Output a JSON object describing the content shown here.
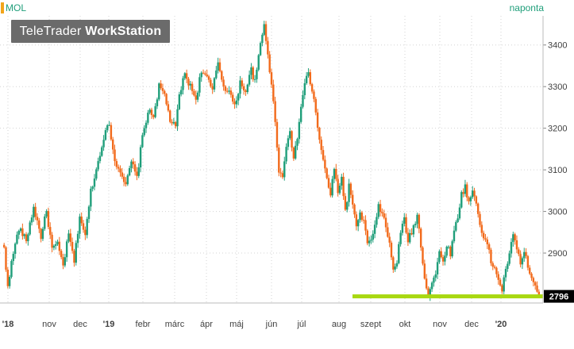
{
  "header": {
    "symbol": "MOL",
    "period": "naponta",
    "logo_regular": "TeleTrader",
    "logo_bold": "WorkStation"
  },
  "colors": {
    "up": "#1f9e7a",
    "down": "#f26a1b",
    "support": "#a8d810",
    "grid": "#d3d3d3",
    "axis_text": "#404040",
    "last_price_box": "#000000"
  },
  "chart_data": {
    "type": "candlestick",
    "x_ticks": [
      "'18",
      "nov",
      "dec",
      "'19",
      "febr",
      "márc",
      "ápr",
      "máj",
      "jún",
      "júl",
      "aug",
      "szept",
      "okt",
      "nov",
      "dec",
      "'20"
    ],
    "y_ticks": [
      2900,
      3000,
      3100,
      3200,
      3300,
      3400
    ],
    "ylim": [
      2780,
      3470
    ],
    "last_price": "2796",
    "support_level": 2796,
    "grid": true,
    "waypoints": [
      [
        0,
        2910
      ],
      [
        1,
        2860
      ],
      [
        2,
        2825
      ],
      [
        5,
        2900
      ],
      [
        8,
        2960
      ],
      [
        12,
        2930
      ],
      [
        16,
        3010
      ],
      [
        20,
        2940
      ],
      [
        23,
        3000
      ],
      [
        26,
        2910
      ],
      [
        29,
        2920
      ],
      [
        32,
        2870
      ],
      [
        35,
        2945
      ],
      [
        38,
        2880
      ],
      [
        41,
        2990
      ],
      [
        44,
        2940
      ],
      [
        47,
        3050
      ],
      [
        50,
        3100
      ],
      [
        54,
        3180
      ],
      [
        57,
        3210
      ],
      [
        60,
        3120
      ],
      [
        63,
        3100
      ],
      [
        66,
        3060
      ],
      [
        69,
        3120
      ],
      [
        72,
        3080
      ],
      [
        75,
        3180
      ],
      [
        78,
        3240
      ],
      [
        81,
        3230
      ],
      [
        84,
        3300
      ],
      [
        87,
        3280
      ],
      [
        90,
        3220
      ],
      [
        93,
        3200
      ],
      [
        95,
        3280
      ],
      [
        98,
        3330
      ],
      [
        101,
        3300
      ],
      [
        104,
        3270
      ],
      [
        107,
        3340
      ],
      [
        110,
        3320
      ],
      [
        113,
        3290
      ],
      [
        116,
        3360
      ],
      [
        119,
        3300
      ],
      [
        122,
        3290
      ],
      [
        125,
        3250
      ],
      [
        128,
        3310
      ],
      [
        131,
        3290
      ],
      [
        134,
        3340
      ],
      [
        136,
        3310
      ],
      [
        139,
        3400
      ],
      [
        141,
        3450
      ],
      [
        143,
        3380
      ],
      [
        145,
        3300
      ],
      [
        147,
        3220
      ],
      [
        149,
        3100
      ],
      [
        151,
        3080
      ],
      [
        153,
        3160
      ],
      [
        155,
        3200
      ],
      [
        157,
        3120
      ],
      [
        159,
        3180
      ],
      [
        161,
        3250
      ],
      [
        163,
        3310
      ],
      [
        165,
        3330
      ],
      [
        167,
        3290
      ],
      [
        169,
        3240
      ],
      [
        171,
        3170
      ],
      [
        173,
        3120
      ],
      [
        175,
        3080
      ],
      [
        177,
        3040
      ],
      [
        179,
        3100
      ],
      [
        181,
        3050
      ],
      [
        183,
        3080
      ],
      [
        185,
        3000
      ],
      [
        187,
        3060
      ],
      [
        189,
        3020
      ],
      [
        191,
        2960
      ],
      [
        193,
        2990
      ],
      [
        195,
        2980
      ],
      [
        197,
        2920
      ],
      [
        200,
        2940
      ],
      [
        203,
        3010
      ],
      [
        205,
        3000
      ],
      [
        207,
        2960
      ],
      [
        209,
        2920
      ],
      [
        211,
        2860
      ],
      [
        213,
        2880
      ],
      [
        215,
        2950
      ],
      [
        217,
        2980
      ],
      [
        219,
        2930
      ],
      [
        221,
        2950
      ],
      [
        224,
        2990
      ],
      [
        226,
        2920
      ],
      [
        228,
        2840
      ],
      [
        230,
        2800
      ],
      [
        232,
        2830
      ],
      [
        234,
        2850
      ],
      [
        236,
        2900
      ],
      [
        238,
        2880
      ],
      [
        240,
        2920
      ],
      [
        242,
        2900
      ],
      [
        244,
        2950
      ],
      [
        246,
        2990
      ],
      [
        248,
        3040
      ],
      [
        250,
        3060
      ],
      [
        252,
        3020
      ],
      [
        254,
        3050
      ],
      [
        256,
        3020
      ],
      [
        258,
        2970
      ],
      [
        260,
        2940
      ],
      [
        262,
        2920
      ],
      [
        264,
        2880
      ],
      [
        266,
        2860
      ],
      [
        268,
        2840
      ],
      [
        270,
        2810
      ],
      [
        272,
        2860
      ],
      [
        274,
        2900
      ],
      [
        276,
        2940
      ],
      [
        278,
        2910
      ],
      [
        280,
        2880
      ],
      [
        282,
        2900
      ],
      [
        284,
        2870
      ],
      [
        286,
        2840
      ],
      [
        288,
        2820
      ],
      [
        290,
        2790
      ]
    ]
  }
}
